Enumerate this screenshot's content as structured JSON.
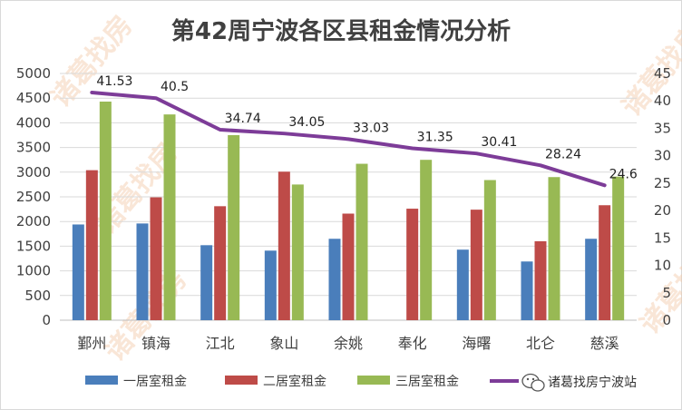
{
  "chart_data": {
    "type": "bar",
    "title": "第42周宁波各区县租金情况分析",
    "categories": [
      "鄞州",
      "镇海",
      "江北",
      "象山",
      "余姚",
      "奉化",
      "海曙",
      "北仑",
      "慈溪"
    ],
    "series": [
      {
        "name": "一居室租金",
        "type": "bar",
        "axis": "left",
        "color": "#4a7ebb",
        "values": [
          1940,
          1960,
          1520,
          1410,
          1650,
          null,
          1430,
          1190,
          1650
        ]
      },
      {
        "name": "二居室租金",
        "type": "bar",
        "axis": "left",
        "color": "#be4b48",
        "values": [
          3040,
          2490,
          2310,
          3010,
          2160,
          2260,
          2240,
          1600,
          2330
        ]
      },
      {
        "name": "三居室租金",
        "type": "bar",
        "axis": "left",
        "color": "#98b954",
        "values": [
          4430,
          4170,
          3750,
          2750,
          3170,
          3250,
          2840,
          2900,
          2910
        ]
      },
      {
        "name": "",
        "type": "line",
        "axis": "right",
        "color": "#7d3c98",
        "values": [
          41.53,
          40.5,
          34.74,
          34.05,
          33.03,
          31.35,
          30.41,
          28.24,
          24.6
        ],
        "labels": [
          "41.53",
          "40.5",
          "34.74",
          "34.05",
          "33.03",
          "31.35",
          "30.41",
          "28.24",
          "24.6"
        ]
      }
    ],
    "y_left": {
      "min": 0,
      "max": 5000,
      "step": 500,
      "ticks": [
        "0",
        "500",
        "1000",
        "1500",
        "2000",
        "2500",
        "3000",
        "3500",
        "4000",
        "4500",
        "5000"
      ]
    },
    "y_right": {
      "min": 0,
      "max": 45,
      "step": 5,
      "ticks": [
        "0",
        "5",
        "10",
        "15",
        "20",
        "25",
        "30",
        "35",
        "40",
        "45"
      ]
    },
    "grid": true,
    "legend": "bottom"
  },
  "watermark": "诸葛找房",
  "footer": {
    "brand": "诸葛找房宁波站",
    "icon": "wechat-icon"
  }
}
